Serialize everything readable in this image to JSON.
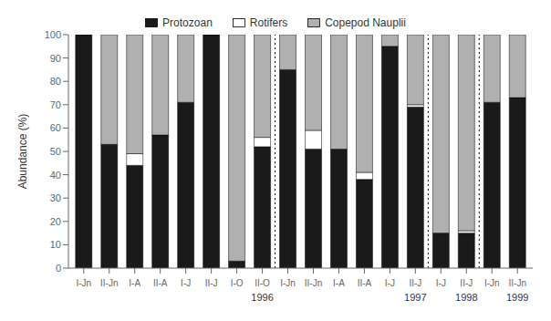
{
  "chart_data": {
    "type": "bar",
    "stacked": true,
    "categories": [
      "I-Jn",
      "II-Jn",
      "I-A",
      "II-A",
      "I-J",
      "II-J",
      "I-O",
      "II-O",
      "I-Jn",
      "II-Jn",
      "I-A",
      "II-A",
      "I-J",
      "II-J",
      "I-J",
      "II-J",
      "I-Jn",
      "II-Jn"
    ],
    "series": [
      {
        "name": "Protozoan",
        "color": "#1a1a1a",
        "values": [
          100,
          53,
          44,
          57,
          71,
          100,
          3,
          52,
          85,
          51,
          51,
          38,
          95,
          69,
          15,
          15,
          71,
          73
        ]
      },
      {
        "name": "Rotifers",
        "color": "#ffffff",
        "values": [
          0,
          0,
          5,
          0,
          0,
          0,
          0,
          4,
          0,
          8,
          0,
          3,
          0,
          1,
          0,
          1,
          0,
          0
        ]
      },
      {
        "name": "Copepod Nauplii",
        "color": "#b0b0b0",
        "values": [
          0,
          47,
          51,
          43,
          29,
          0,
          97,
          44,
          15,
          41,
          49,
          59,
          5,
          30,
          85,
          84,
          29,
          27
        ]
      }
    ],
    "ylabel": "Abundance (%)",
    "ylim": [
      0,
      100
    ],
    "yticks": [
      0,
      10,
      20,
      30,
      40,
      50,
      60,
      70,
      80,
      90,
      100
    ],
    "dividers": [
      7.5,
      13.5,
      15.5
    ],
    "annotations": [
      {
        "text": "1996",
        "x": 7
      },
      {
        "text": "1997",
        "x": 13
      },
      {
        "text": "1998",
        "x": 15
      },
      {
        "text": "1999",
        "x": 17
      }
    ],
    "grid": false,
    "legend": "top"
  }
}
